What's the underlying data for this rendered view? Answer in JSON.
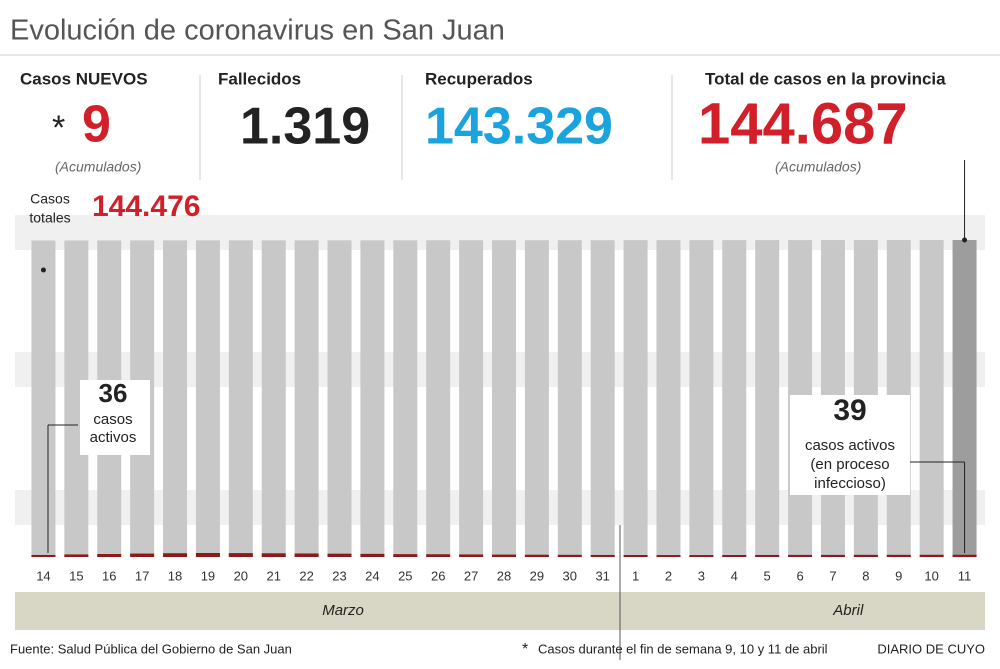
{
  "title": "Evolución de coronavirus en San Juan",
  "stats": [
    {
      "label": "Casos NUEVOS",
      "prefix": "*",
      "value": "9",
      "note": "(Acumulados)"
    },
    {
      "label": "Fallecidos",
      "value": "1.319"
    },
    {
      "label": "Recuperados",
      "value": "143.329"
    },
    {
      "label": "Total de casos en la provincia",
      "value": "144.687",
      "note": "(Acumulados)"
    }
  ],
  "chart_data": {
    "type": "bar",
    "categories": [
      "14",
      "15",
      "16",
      "17",
      "18",
      "19",
      "20",
      "21",
      "22",
      "23",
      "24",
      "25",
      "26",
      "27",
      "28",
      "29",
      "30",
      "31",
      "1",
      "2",
      "3",
      "4",
      "5",
      "6",
      "7",
      "8",
      "9",
      "10",
      "11"
    ],
    "months": [
      "Marzo",
      "Abril"
    ],
    "total_label": [
      "Casos",
      "totales"
    ],
    "series": [
      {
        "color": "#c8c8c8",
        "last_color": "#9d9d9d",
        "values": [
          144476,
          144484,
          144491,
          144499,
          144506,
          144514,
          144521,
          144529,
          144536,
          144544,
          144551,
          144559,
          144566,
          144574,
          144581,
          144589,
          144596,
          144604,
          144611,
          144619,
          144626,
          144634,
          144641,
          144649,
          144656,
          144664,
          144671,
          144678,
          144687
        ],
        "value_labels": {
          "0": "144.476"
        }
      },
      {
        "color": "#8b1a1a",
        "values": [
          36,
          45,
          52,
          60,
          66,
          70,
          68,
          65,
          62,
          58,
          55,
          50,
          48,
          45,
          42,
          40,
          38,
          36,
          35,
          34,
          34,
          35,
          36,
          37,
          37,
          38,
          38,
          39,
          39
        ],
        "value_labels": {
          "0": "36",
          "28": "39"
        }
      }
    ],
    "annotations": [
      [
        "casos",
        "activos"
      ],
      [
        "casos activos",
        "(en proceso",
        "infeccioso)"
      ]
    ]
  },
  "footer": {
    "source": "Fuente: Salud Pública del Gobierno de San Juan",
    "note": "Casos durante el fin de semana 9, 10 y 11 de abril",
    "brand": "DIARIO DE CUYO"
  }
}
